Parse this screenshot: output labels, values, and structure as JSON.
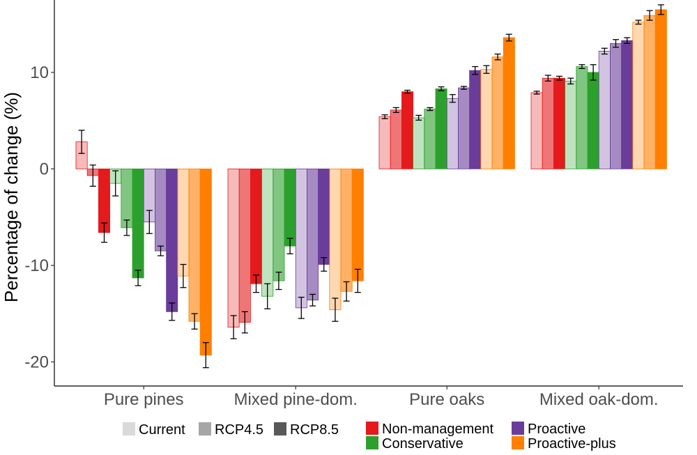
{
  "chart_data": {
    "type": "bar",
    "title": "",
    "xlabel": "",
    "ylabel": "Percentage of change (%)",
    "ylim": [
      -22.5,
      17.5
    ],
    "yticks": [
      -20,
      -10,
      0,
      10
    ],
    "grid": false,
    "categories": [
      "Pure pines",
      "Mixed pine-dom.",
      "Pure oaks",
      "Mixed oak-dom."
    ],
    "strategies": [
      {
        "name": "Non-management",
        "color": "#e41a1c"
      },
      {
        "name": "Conservative",
        "color": "#2ca02c"
      },
      {
        "name": "Proactive",
        "color": "#6a3d9a"
      },
      {
        "name": "Proactive-plus",
        "color": "#ff7f00"
      }
    ],
    "scenarios": [
      {
        "name": "Current",
        "alpha": 0.3
      },
      {
        "name": "RCP4.5",
        "alpha": 0.6
      },
      {
        "name": "RCP8.5",
        "alpha": 1.0
      }
    ],
    "series": [
      {
        "name": "Non-management Current",
        "strategy": "Non-management",
        "scenario": "Current",
        "values": [
          2.8,
          -16.4,
          5.4,
          7.9
        ],
        "errors": [
          1.2,
          1.2,
          0.2,
          0.15
        ]
      },
      {
        "name": "Non-management RCP4.5",
        "strategy": "Non-management",
        "scenario": "RCP4.5",
        "values": [
          -0.7,
          -15.9,
          6.1,
          9.4
        ],
        "errors": [
          1.1,
          1.1,
          0.25,
          0.3
        ]
      },
      {
        "name": "Non-management RCP8.5",
        "strategy": "Non-management",
        "scenario": "RCP8.5",
        "values": [
          -6.6,
          -11.9,
          8.0,
          9.4
        ],
        "errors": [
          1.0,
          0.9,
          0.15,
          0.2
        ]
      },
      {
        "name": "Conservative Current",
        "strategy": "Conservative",
        "scenario": "Current",
        "values": [
          -1.5,
          -13.2,
          5.3,
          9.1
        ],
        "errors": [
          1.3,
          1.3,
          0.25,
          0.3
        ]
      },
      {
        "name": "Conservative RCP4.5",
        "strategy": "Conservative",
        "scenario": "RCP4.5",
        "values": [
          -6.1,
          -11.6,
          6.2,
          10.6
        ],
        "errors": [
          0.8,
          0.9,
          0.15,
          0.2
        ]
      },
      {
        "name": "Conservative RCP8.5",
        "strategy": "Conservative",
        "scenario": "RCP8.5",
        "values": [
          -11.3,
          -8.0,
          8.3,
          10.0
        ],
        "errors": [
          0.8,
          0.8,
          0.2,
          0.8
        ]
      },
      {
        "name": "Proactive Current",
        "strategy": "Proactive",
        "scenario": "Current",
        "values": [
          -5.5,
          -14.4,
          7.3,
          12.2
        ],
        "errors": [
          1.2,
          1.1,
          0.4,
          0.3
        ]
      },
      {
        "name": "Proactive RCP4.5",
        "strategy": "Proactive",
        "scenario": "RCP4.5",
        "values": [
          -8.5,
          -13.6,
          8.4,
          13.0
        ],
        "errors": [
          0.5,
          0.6,
          0.15,
          0.4
        ]
      },
      {
        "name": "Proactive RCP8.5",
        "strategy": "Proactive",
        "scenario": "RCP8.5",
        "values": [
          -14.8,
          -9.9,
          10.2,
          13.3
        ],
        "errors": [
          0.9,
          0.7,
          0.4,
          0.3
        ]
      },
      {
        "name": "Proactive-plus Current",
        "strategy": "Proactive-plus",
        "scenario": "Current",
        "values": [
          -11.1,
          -14.6,
          10.3,
          15.2
        ],
        "errors": [
          1.2,
          1.2,
          0.4,
          0.2
        ]
      },
      {
        "name": "Proactive-plus RCP4.5",
        "strategy": "Proactive-plus",
        "scenario": "RCP4.5",
        "values": [
          -15.8,
          -12.7,
          11.6,
          15.9
        ],
        "errors": [
          0.8,
          1.0,
          0.3,
          0.5
        ]
      },
      {
        "name": "Proactive-plus RCP8.5",
        "strategy": "Proactive-plus",
        "scenario": "RCP8.5",
        "values": [
          -19.3,
          -11.6,
          13.6,
          16.5
        ],
        "errors": [
          1.3,
          1.2,
          0.35,
          0.5
        ]
      }
    ],
    "legend": {
      "placement": "bottom",
      "scenario_labels": [
        "Current",
        "RCP4.5",
        "RCP8.5"
      ],
      "strategy_labels": [
        "Non-management",
        "Proactive",
        "Conservative",
        "Proactive-plus"
      ]
    }
  }
}
